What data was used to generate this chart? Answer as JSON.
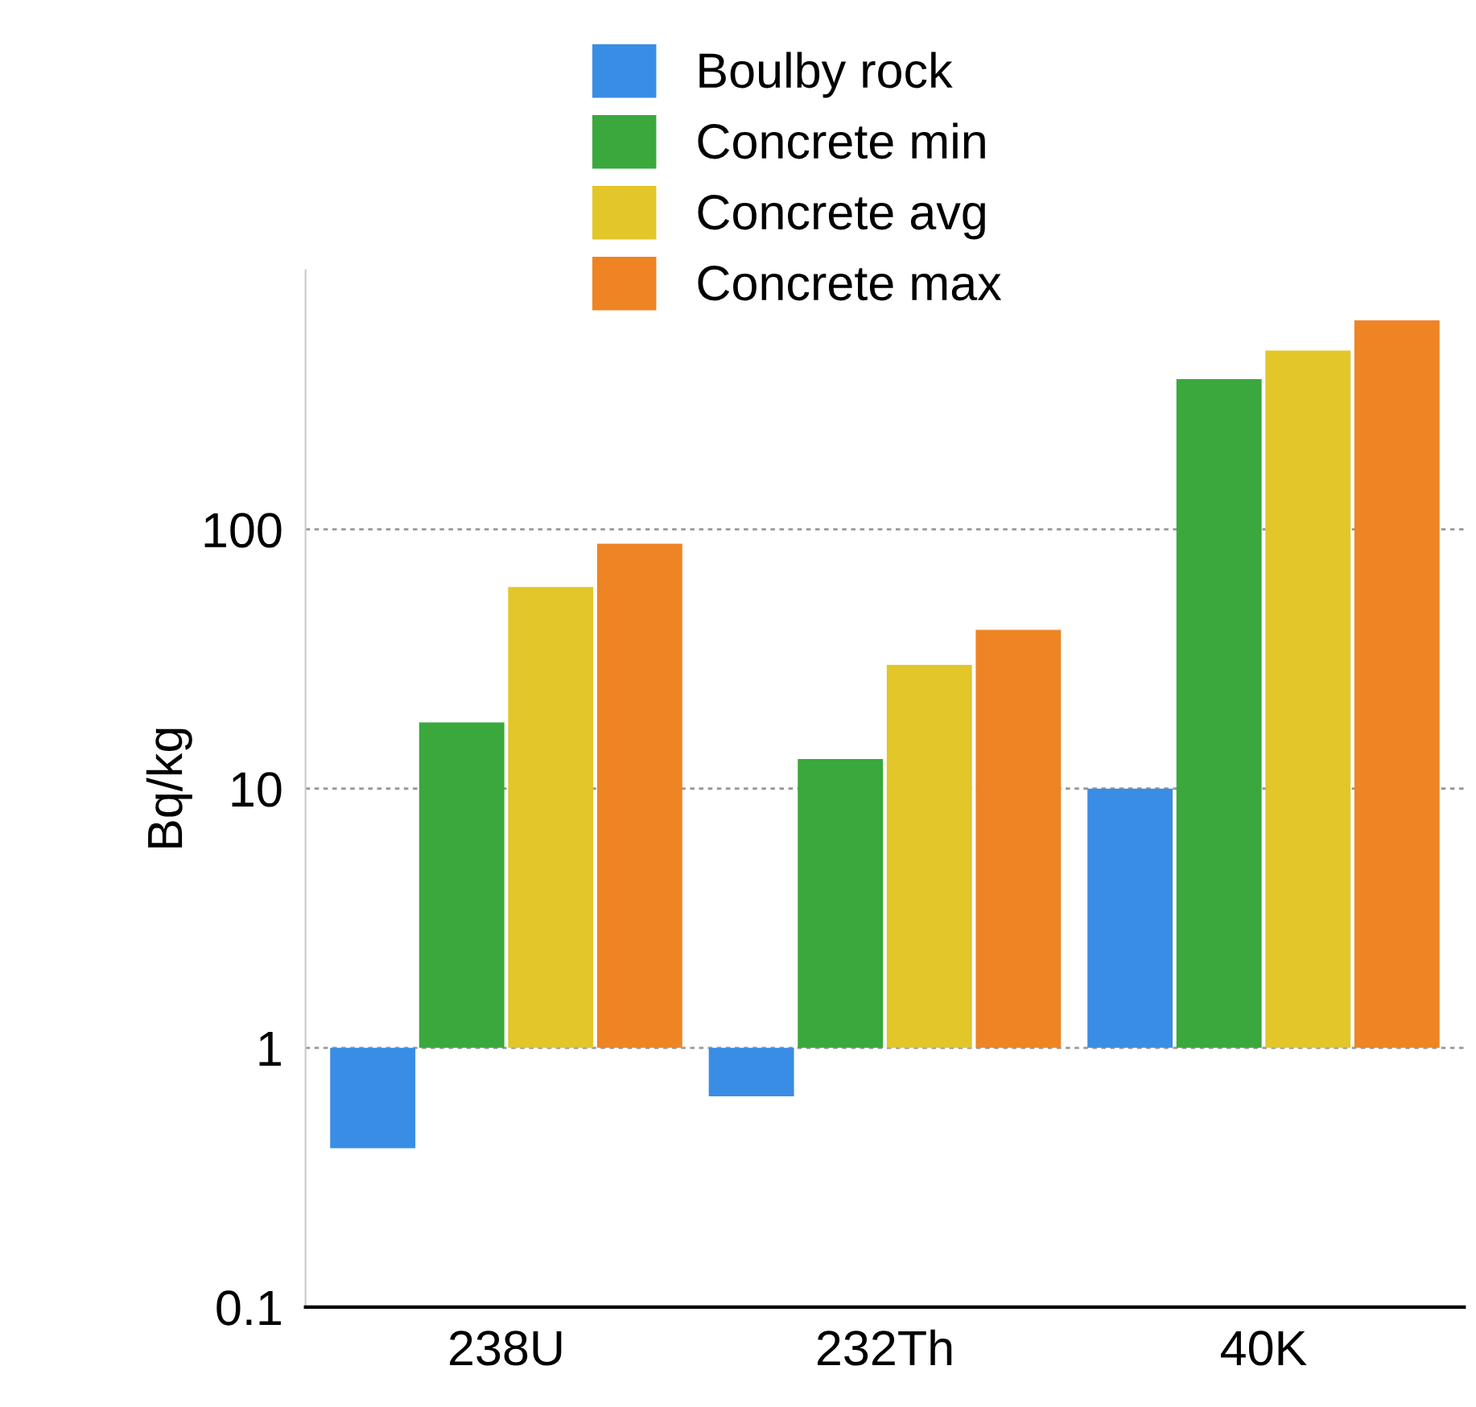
{
  "chart_data": {
    "type": "bar",
    "ylabel": "Bq/kg",
    "categories": [
      "238U",
      "232Th",
      "40K"
    ],
    "series": [
      {
        "name": "Boulby rock",
        "color": "#3a8de4",
        "base": [
          1,
          1,
          1
        ],
        "values": [
          -0.59,
          -0.35,
          9
        ]
      },
      {
        "name": "Concrete min",
        "color": "#3aa83c",
        "base": [
          1,
          1,
          1
        ],
        "values": [
          17,
          12,
          379
        ]
      },
      {
        "name": "Concrete avg",
        "color": "#e2c62a",
        "base": [
          1,
          1,
          1
        ],
        "values": [
          59,
          29,
          489
        ]
      },
      {
        "name": "Concrete max",
        "color": "#ee8424",
        "base": [
          1,
          1,
          1
        ],
        "values": [
          87,
          40,
          639
        ]
      }
    ],
    "log": true,
    "ylim": [
      0.1,
      1000
    ],
    "yticks": [
      0.1,
      1,
      10,
      100
    ],
    "grid": "y",
    "legend": "top"
  }
}
